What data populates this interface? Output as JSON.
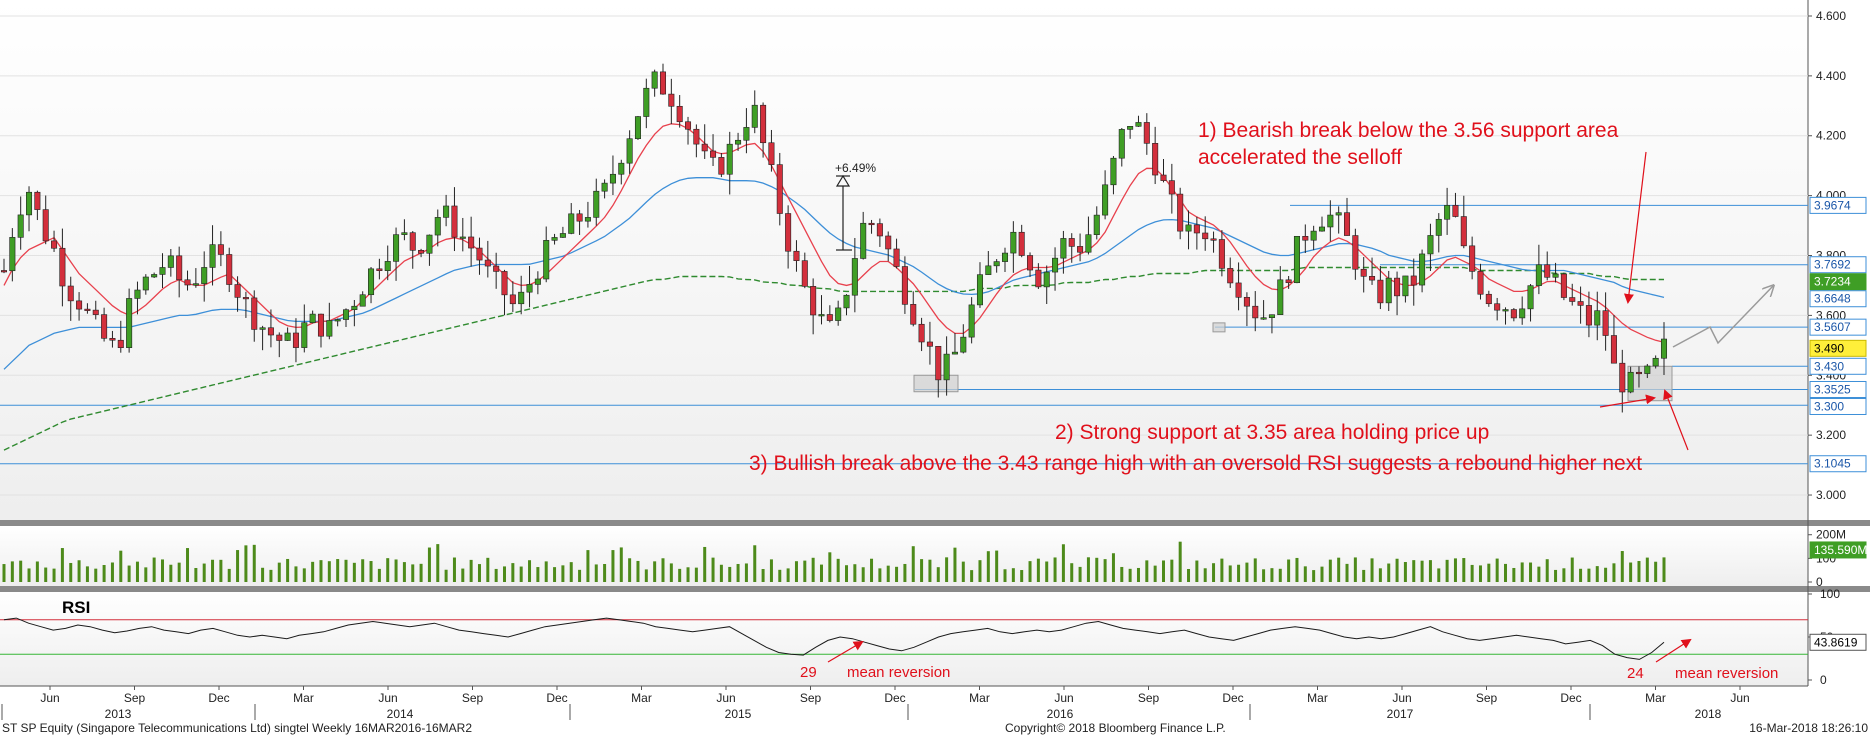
{
  "chart_data": [
    {
      "type": "candlestick",
      "title": "",
      "ylim": [
        2.95,
        4.62
      ],
      "yticks": [
        "4.600",
        "4.400",
        "4.200",
        "4.000",
        "3.800",
        "3.600",
        "3.400",
        "3.200",
        "3.000"
      ],
      "ytick_values": [
        4.6,
        4.4,
        4.2,
        4.0,
        3.8,
        3.6,
        3.4,
        3.2,
        3.0
      ],
      "x_month_labels": [
        "Jun",
        "Sep",
        "Dec",
        "Mar",
        "Jun",
        "Sep",
        "Dec",
        "Mar",
        "Jun",
        "Sep",
        "Dec",
        "Mar",
        "Jun",
        "Sep",
        "Dec",
        "Mar",
        "Jun",
        "Sep",
        "Dec",
        "Mar",
        "Jun"
      ],
      "x_year_labels": [
        "2013",
        "2014",
        "2015",
        "2016",
        "2017",
        "2018"
      ],
      "close_path": [
        3.75,
        3.95,
        4.02,
        3.9,
        3.82,
        3.7,
        3.65,
        3.58,
        3.52,
        3.48,
        3.62,
        3.7,
        3.74,
        3.78,
        3.72,
        3.7,
        3.78,
        3.8,
        3.75,
        3.66,
        3.6,
        3.55,
        3.52,
        3.5,
        3.56,
        3.58,
        3.55,
        3.6,
        3.65,
        3.72,
        3.78,
        3.84,
        3.86,
        3.82,
        3.88,
        3.95,
        3.9,
        3.85,
        3.8,
        3.72,
        3.68,
        3.62,
        3.7,
        3.78,
        3.84,
        3.88,
        3.92,
        3.96,
        4.0,
        4.1,
        4.2,
        4.3,
        4.38,
        4.36,
        4.3,
        4.22,
        4.12,
        4.08,
        4.14,
        4.22,
        4.3,
        4.14,
        3.98,
        3.82,
        3.7,
        3.62,
        3.54,
        3.6,
        3.78,
        3.92,
        3.9,
        3.8,
        3.7,
        3.6,
        3.5,
        3.4,
        3.45,
        3.56,
        3.68,
        3.76,
        3.84,
        3.88,
        3.8,
        3.72,
        3.78,
        3.85,
        3.82,
        3.88,
        3.98,
        4.12,
        4.26,
        4.22,
        4.14,
        4.02,
        3.92,
        3.86,
        3.9,
        3.84,
        3.76,
        3.7,
        3.62,
        3.6,
        3.66,
        3.76,
        3.86,
        3.92,
        3.94,
        3.9,
        3.82,
        3.7,
        3.66,
        3.7,
        3.68,
        3.72,
        3.82,
        3.92,
        3.96,
        3.8,
        3.72,
        3.66,
        3.64,
        3.62,
        3.68,
        3.74,
        3.72,
        3.66,
        3.62,
        3.58,
        3.6,
        3.42,
        3.36,
        3.38,
        3.4,
        3.49
      ],
      "ma_fast_values": [
        3.7,
        3.78,
        3.82,
        3.84,
        3.86,
        3.8,
        3.74,
        3.7,
        3.66,
        3.62,
        3.6,
        3.62,
        3.66,
        3.7,
        3.72,
        3.7,
        3.7,
        3.72,
        3.74,
        3.7,
        3.66,
        3.62,
        3.58,
        3.56,
        3.56,
        3.58,
        3.58,
        3.6,
        3.62,
        3.66,
        3.7,
        3.74,
        3.78,
        3.8,
        3.82,
        3.85,
        3.86,
        3.85,
        3.82,
        3.78,
        3.74,
        3.7,
        3.7,
        3.72,
        3.76,
        3.8,
        3.84,
        3.88,
        3.92,
        3.98,
        4.06,
        4.14,
        4.2,
        4.24,
        4.24,
        4.22,
        4.18,
        4.14,
        4.14,
        4.16,
        4.18,
        4.14,
        4.06,
        3.98,
        3.9,
        3.82,
        3.74,
        3.7,
        3.7,
        3.74,
        3.78,
        3.78,
        3.74,
        3.7,
        3.64,
        3.58,
        3.54,
        3.54,
        3.58,
        3.64,
        3.7,
        3.74,
        3.76,
        3.76,
        3.76,
        3.78,
        3.8,
        3.82,
        3.86,
        3.94,
        4.02,
        4.08,
        4.1,
        4.06,
        4.0,
        3.94,
        3.92,
        3.9,
        3.86,
        3.8,
        3.74,
        3.7,
        3.68,
        3.7,
        3.74,
        3.8,
        3.84,
        3.86,
        3.84,
        3.8,
        3.76,
        3.72,
        3.7,
        3.7,
        3.72,
        3.76,
        3.8,
        3.78,
        3.76,
        3.72,
        3.7,
        3.68,
        3.68,
        3.7,
        3.72,
        3.7,
        3.68,
        3.66,
        3.64,
        3.6,
        3.56,
        3.54,
        3.52,
        3.51
      ],
      "ma_mid_values": [
        3.42,
        3.46,
        3.5,
        3.52,
        3.54,
        3.55,
        3.56,
        3.56,
        3.56,
        3.56,
        3.56,
        3.57,
        3.58,
        3.59,
        3.6,
        3.6,
        3.61,
        3.62,
        3.62,
        3.62,
        3.61,
        3.6,
        3.59,
        3.58,
        3.58,
        3.58,
        3.58,
        3.59,
        3.6,
        3.61,
        3.63,
        3.65,
        3.67,
        3.69,
        3.71,
        3.73,
        3.75,
        3.76,
        3.77,
        3.77,
        3.77,
        3.77,
        3.77,
        3.78,
        3.79,
        3.8,
        3.82,
        3.84,
        3.86,
        3.89,
        3.92,
        3.96,
        4.0,
        4.03,
        4.05,
        4.06,
        4.06,
        4.06,
        4.05,
        4.05,
        4.05,
        4.04,
        4.02,
        3.99,
        3.96,
        3.92,
        3.88,
        3.85,
        3.83,
        3.82,
        3.81,
        3.8,
        3.78,
        3.76,
        3.73,
        3.7,
        3.68,
        3.67,
        3.67,
        3.68,
        3.7,
        3.72,
        3.73,
        3.74,
        3.75,
        3.76,
        3.77,
        3.78,
        3.8,
        3.83,
        3.86,
        3.89,
        3.91,
        3.92,
        3.92,
        3.91,
        3.9,
        3.89,
        3.87,
        3.85,
        3.83,
        3.81,
        3.8,
        3.8,
        3.81,
        3.82,
        3.83,
        3.84,
        3.84,
        3.83,
        3.82,
        3.8,
        3.79,
        3.78,
        3.78,
        3.79,
        3.8,
        3.8,
        3.79,
        3.78,
        3.77,
        3.76,
        3.75,
        3.75,
        3.75,
        3.75,
        3.74,
        3.73,
        3.72,
        3.71,
        3.69,
        3.68,
        3.67,
        3.66
      ],
      "ma_slow_values": [
        3.15,
        3.17,
        3.19,
        3.21,
        3.23,
        3.25,
        3.26,
        3.27,
        3.28,
        3.29,
        3.3,
        3.31,
        3.32,
        3.33,
        3.34,
        3.35,
        3.36,
        3.37,
        3.38,
        3.39,
        3.4,
        3.41,
        3.42,
        3.43,
        3.44,
        3.45,
        3.46,
        3.47,
        3.48,
        3.49,
        3.5,
        3.51,
        3.52,
        3.53,
        3.54,
        3.55,
        3.56,
        3.57,
        3.58,
        3.59,
        3.6,
        3.61,
        3.62,
        3.63,
        3.64,
        3.65,
        3.66,
        3.67,
        3.68,
        3.69,
        3.7,
        3.71,
        3.72,
        3.72,
        3.73,
        3.73,
        3.73,
        3.73,
        3.73,
        3.72,
        3.72,
        3.71,
        3.71,
        3.7,
        3.7,
        3.69,
        3.69,
        3.68,
        3.68,
        3.68,
        3.68,
        3.68,
        3.68,
        3.68,
        3.68,
        3.68,
        3.68,
        3.68,
        3.69,
        3.69,
        3.69,
        3.7,
        3.7,
        3.7,
        3.7,
        3.71,
        3.71,
        3.71,
        3.72,
        3.72,
        3.73,
        3.73,
        3.74,
        3.74,
        3.74,
        3.74,
        3.75,
        3.75,
        3.75,
        3.75,
        3.75,
        3.75,
        3.75,
        3.75,
        3.76,
        3.76,
        3.76,
        3.76,
        3.76,
        3.76,
        3.76,
        3.76,
        3.76,
        3.76,
        3.76,
        3.76,
        3.76,
        3.76,
        3.75,
        3.75,
        3.75,
        3.75,
        3.75,
        3.75,
        3.74,
        3.74,
        3.74,
        3.74,
        3.73,
        3.73,
        3.72,
        3.72,
        3.72,
        3.72
      ],
      "levels": [
        {
          "label": "3.9674",
          "value": 3.9674,
          "color": "#3d8fd8"
        },
        {
          "label": "3.7692",
          "value": 3.7692,
          "color": "#3d8fd8"
        },
        {
          "label": "3.5607",
          "value": 3.5607,
          "color": "#3d8fd8"
        },
        {
          "label": "3.3525",
          "value": 3.3525,
          "color": "#3d8fd8"
        },
        {
          "label": "3.300",
          "value": 3.3,
          "color": "#3d8fd8"
        },
        {
          "label": "3.1045",
          "value": 3.1045,
          "color": "#3d8fd8"
        }
      ],
      "right_tags": [
        {
          "label": "3.9674",
          "value": 3.9674,
          "bg": "#ffffff",
          "fg": "#1a56a8",
          "border": "#3d8fd8"
        },
        {
          "label": "3.7692",
          "value": 3.7692,
          "bg": "#ffffff",
          "fg": "#1a56a8",
          "border": "#3d8fd8"
        },
        {
          "label": "3.7234",
          "value": 3.7234,
          "bg": "#3f9e25",
          "fg": "#ffffff",
          "border": "#3f9e25"
        },
        {
          "label": "3.6648",
          "value": 3.6648,
          "bg": "#ffffff",
          "fg": "#1a56a8",
          "border": "#3d8fd8"
        },
        {
          "label": "3.5607",
          "value": 3.5607,
          "bg": "#ffffff",
          "fg": "#1a56a8",
          "border": "#3d8fd8"
        },
        {
          "label": "3.490",
          "value": 3.49,
          "bg": "#ffef3a",
          "fg": "#000000",
          "border": "#c8b800"
        },
        {
          "label": "3.430",
          "value": 3.43,
          "bg": "#ffffff",
          "fg": "#1a56a8",
          "border": "#3d8fd8"
        },
        {
          "label": "3.3525",
          "value": 3.3525,
          "bg": "#ffffff",
          "fg": "#1a56a8",
          "border": "#3d8fd8"
        },
        {
          "label": "3.300",
          "value": 3.3,
          "bg": "#ffffff",
          "fg": "#1a56a8",
          "border": "#3d8fd8"
        },
        {
          "label": "3.1045",
          "value": 3.1045,
          "bg": "#ffffff",
          "fg": "#1a56a8",
          "border": "#3d8fd8"
        }
      ],
      "annotations": {
        "note1_line1": "1) Bearish break below the 3.56 support area",
        "note1_line2": "accelerated the selloff",
        "note2": "2) Strong support at 3.35 area holding price up",
        "note3": "3) Bullish break above the 3.43 range high with an oversold RSI suggests a rebound higher next",
        "pct_label": "+6.49%"
      },
      "colors": {
        "up": "#3f9e25",
        "down": "#d32f3c",
        "ma_fast": "#e8414d",
        "ma_mid": "#3d8fd8",
        "ma_slow": "#2f8a2f",
        "annotation": "#e0101b",
        "forecast": "#9a9a9a"
      }
    },
    {
      "type": "bar",
      "title": "",
      "ylim": [
        0,
        220
      ],
      "yticks": [
        "200M",
        "100",
        "0"
      ],
      "ytick_values": [
        200,
        100,
        0
      ],
      "last_value_label": "135.590M",
      "color": "#4d8a1a"
    },
    {
      "type": "line",
      "title": "RSI",
      "ylim": [
        0,
        100
      ],
      "yticks": [
        "100",
        "50",
        "0"
      ],
      "ytick_values": [
        100,
        50,
        0
      ],
      "overbought": 70,
      "oversold": 30,
      "last_value_label": "43.8619",
      "values": [
        70,
        72,
        66,
        62,
        58,
        60,
        64,
        62,
        58,
        55,
        57,
        60,
        62,
        58,
        56,
        54,
        58,
        60,
        56,
        52,
        50,
        52,
        50,
        48,
        52,
        54,
        56,
        60,
        64,
        66,
        68,
        66,
        64,
        62,
        64,
        66,
        62,
        58,
        56,
        54,
        52,
        50,
        54,
        58,
        62,
        64,
        66,
        68,
        70,
        72,
        70,
        68,
        66,
        62,
        60,
        58,
        56,
        58,
        60,
        62,
        54,
        46,
        38,
        32,
        30,
        29,
        38,
        46,
        50,
        48,
        44,
        40,
        36,
        34,
        38,
        44,
        50,
        54,
        56,
        58,
        60,
        56,
        54,
        56,
        58,
        56,
        58,
        62,
        66,
        68,
        64,
        60,
        58,
        56,
        54,
        56,
        58,
        54,
        50,
        48,
        46,
        50,
        54,
        58,
        60,
        62,
        60,
        58,
        54,
        50,
        48,
        50,
        48,
        50,
        54,
        58,
        62,
        56,
        52,
        48,
        46,
        48,
        50,
        52,
        50,
        48,
        46,
        42,
        44,
        46,
        40,
        30,
        26,
        24,
        32,
        44
      ],
      "annotations": {
        "left_number": "29",
        "left_text": "mean reversion",
        "right_number": "24",
        "right_text": "mean reversion"
      },
      "colors": {
        "line": "#1a1a1a",
        "overbought": "#d32f3c",
        "oversold": "#37b637",
        "annotation": "#e0101b"
      }
    }
  ],
  "footer": {
    "left": "ST SP Equity (Singapore Telecommunications Ltd) singtel  Weekly 16MAR2016-16MAR2",
    "center": "Copyright© 2018 Bloomberg Finance L.P.",
    "right": "16-Mar-2018 18:26:10"
  }
}
